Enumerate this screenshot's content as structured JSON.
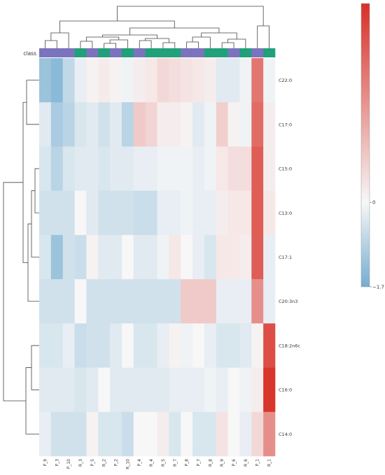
{
  "chart_data": {
    "type": "heatmap",
    "title": "",
    "class_label": "class",
    "class_colors": {
      "P": "#7b73bd",
      "R": "#21a07a"
    },
    "columns": [
      "P_9",
      "P_3",
      "P_10",
      "R_3",
      "P_5",
      "R_2",
      "P_2",
      "R_10",
      "P_4",
      "R_4",
      "R_5",
      "R_7",
      "P_8",
      "P_7",
      "R_8",
      "R_9",
      "P_6",
      "R_6",
      "P_1",
      "R_1"
    ],
    "column_classes": [
      "P",
      "P",
      "P",
      "R",
      "P",
      "R",
      "P",
      "R",
      "P",
      "R",
      "R",
      "R",
      "P",
      "P",
      "R",
      "R",
      "P",
      "R",
      "P",
      "R"
    ],
    "rows": [
      "C22:0",
      "C17:0",
      "C15:0",
      "C13:0",
      "C17:1",
      "C20:3n3",
      "C18:2n6c",
      "C16:0",
      "C14:0"
    ],
    "values": [
      [
        -1.2,
        -1.4,
        -0.7,
        -0.2,
        0.1,
        0.25,
        0.1,
        -0.1,
        0.2,
        0.3,
        0.6,
        0.5,
        0.4,
        0.3,
        0.2,
        -0.3,
        -0.3,
        -0.1,
        2.6,
        -0.1
      ],
      [
        -0.3,
        -1.0,
        -0.8,
        -0.4,
        -0.3,
        -0.5,
        -0.3,
        -0.8,
        0.9,
        0.7,
        0.2,
        0.2,
        0.1,
        -0.3,
        -0.1,
        0.8,
        0.1,
        -0.1,
        2.8,
        0.2
      ],
      [
        -0.4,
        -0.8,
        -0.4,
        -0.3,
        -0.3,
        -0.4,
        -0.3,
        -0.3,
        -0.2,
        -0.2,
        -0.1,
        -0.1,
        -0.1,
        -0.2,
        -0.1,
        0.3,
        0.5,
        0.5,
        3.1,
        0.2
      ],
      [
        -0.5,
        -0.5,
        -0.5,
        0.0,
        -0.3,
        -0.5,
        -0.5,
        -0.5,
        -0.6,
        -0.6,
        -0.2,
        -0.2,
        -0.1,
        -0.2,
        -0.2,
        0.2,
        0.3,
        0.3,
        3.1,
        0.3
      ],
      [
        -0.4,
        -1.2,
        -0.5,
        -0.6,
        0.1,
        -0.3,
        -0.3,
        0.0,
        -0.3,
        -0.3,
        -0.1,
        0.3,
        0.0,
        -0.2,
        -0.4,
        0.3,
        0.3,
        0.2,
        3.1,
        -0.2
      ],
      [
        -0.5,
        -0.5,
        -0.5,
        0.0,
        -0.5,
        -0.5,
        -0.5,
        -0.5,
        -0.5,
        -0.5,
        -0.5,
        -0.5,
        0.9,
        0.9,
        0.9,
        -0.2,
        -0.2,
        -0.2,
        2.1,
        -0.2
      ],
      [
        -0.4,
        -0.4,
        -0.2,
        -0.6,
        -0.5,
        -0.5,
        -0.3,
        0.0,
        -0.4,
        -0.4,
        -0.2,
        0.1,
        -0.1,
        0.0,
        -0.2,
        -0.4,
        -0.4,
        -0.3,
        0.1,
        3.4
      ],
      [
        -0.3,
        -0.3,
        -0.3,
        -0.4,
        -0.3,
        0.0,
        -0.3,
        -0.3,
        -0.3,
        -0.3,
        -0.3,
        -0.2,
        -0.2,
        -0.2,
        -0.1,
        -0.2,
        0.0,
        -0.1,
        0.2,
        3.9
      ],
      [
        -0.2,
        -0.5,
        -0.5,
        -0.5,
        0.1,
        -0.4,
        -0.4,
        -0.6,
        0.0,
        0.0,
        0.2,
        -0.4,
        0.0,
        -0.4,
        -0.4,
        0.4,
        0.0,
        -0.2,
        0.6,
        2.1
      ]
    ],
    "colorbar": {
      "tick_labels": [
        "0",
        "−1.7"
      ],
      "tick_values": [
        0,
        -1.7
      ],
      "vmin": -1.7,
      "vmax": 4.0
    },
    "row_dendrogram": true,
    "column_dendrogram": true,
    "grid": false,
    "legend": "colorbar-right"
  },
  "colors": {
    "negative": "#74add1",
    "neutral": "#f7f7f7",
    "positive": "#d73027",
    "dendrogram": "#444444"
  }
}
